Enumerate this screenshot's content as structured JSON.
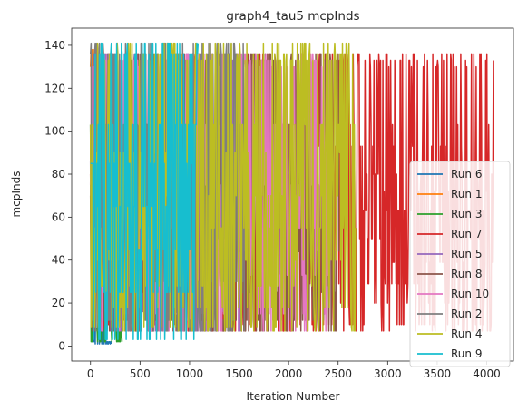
{
  "chart_data": {
    "type": "line",
    "title": "graph4_tau5 mcpInds",
    "xlabel": "Iteration Number",
    "ylabel": "mcpInds",
    "xlim": [
      -190,
      4270
    ],
    "ylim": [
      -7,
      148
    ],
    "xticks": [
      0,
      500,
      1000,
      1500,
      2000,
      2500,
      3000,
      3500,
      4000
    ],
    "yticks": [
      0,
      20,
      40,
      60,
      80,
      100,
      120,
      140
    ],
    "grid": false,
    "legend_position": "lower-right",
    "series": [
      {
        "name": "Run 6",
        "color": "#1f77b4",
        "length": 210,
        "seed": 6,
        "levels": [
          2,
          1,
          103,
          120,
          36,
          10
        ],
        "tail": [
          2,
          1
        ]
      },
      {
        "name": "Run 1",
        "color": "#ff7f0e",
        "length": 40,
        "seed": 1,
        "levels": [
          138,
          130,
          103,
          45,
          12
        ],
        "tail": []
      },
      {
        "name": "Run 3",
        "color": "#2ca02c",
        "length": 320,
        "seed": 3,
        "levels": [
          133,
          103,
          44,
          8,
          2
        ],
        "tail": [
          2,
          8
        ]
      },
      {
        "name": "Run 7",
        "color": "#d62728",
        "length": 4070,
        "seed": 7,
        "levels": [
          136,
          133,
          130,
          103,
          93,
          80,
          72,
          63,
          50,
          39,
          29,
          20,
          10,
          7
        ],
        "tail": []
      },
      {
        "name": "Run 5",
        "color": "#9467bd",
        "length": 1540,
        "seed": 5,
        "levels": [
          136,
          133,
          103,
          86,
          62,
          44,
          30,
          16,
          7
        ],
        "tail": []
      },
      {
        "name": "Run 8",
        "color": "#8c564b",
        "length": 2510,
        "seed": 8,
        "levels": [
          136,
          133,
          103,
          70,
          44,
          25,
          12,
          7
        ],
        "tail": []
      },
      {
        "name": "Run 10",
        "color": "#e377c2",
        "length": 2440,
        "seed": 10,
        "levels": [
          136,
          133,
          130,
          103,
          75,
          55,
          33,
          15,
          7
        ],
        "tail": []
      },
      {
        "name": "Run 2",
        "color": "#7f7f7f",
        "length": 1560,
        "seed": 2,
        "levels": [
          141,
          136,
          103,
          50,
          30,
          12,
          7
        ],
        "tail": []
      },
      {
        "name": "Run 4",
        "color": "#bcbd22",
        "length": 2680,
        "seed": 4,
        "levels": [
          141,
          136,
          133,
          103,
          90,
          70,
          55,
          40,
          28,
          18,
          9,
          7
        ],
        "tail": []
      },
      {
        "name": "Run 9",
        "color": "#17becf",
        "length": 1090,
        "seed": 9,
        "levels": [
          141,
          136,
          103,
          85,
          65,
          45,
          25,
          3
        ],
        "tail": []
      }
    ]
  }
}
